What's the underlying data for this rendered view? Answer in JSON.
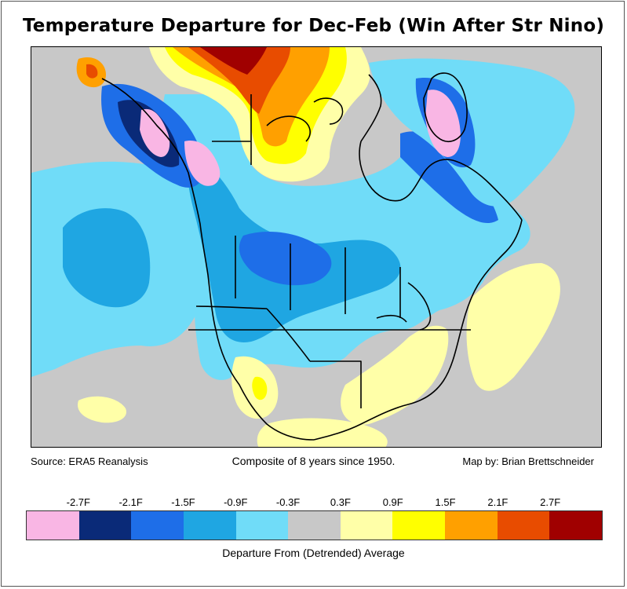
{
  "title": "Temperature Departure for Dec-Feb (Win After Str Nino)",
  "captions": {
    "source": "Source: ERA5 Reanalysis",
    "composite": "Composite of 8 years since 1950.",
    "credit": "Map by: Brian Brettschneider"
  },
  "colorbar": {
    "title": "Departure From (Detrended) Average",
    "tick_labels": [
      "-2.7F",
      "-2.1F",
      "-1.5F",
      "-0.9F",
      "-0.3F",
      "0.3F",
      "0.9F",
      "1.5F",
      "2.1F",
      "2.7F"
    ],
    "colors": [
      "#f9b6e4",
      "#0a2a78",
      "#1e6ee8",
      "#1fa6e2",
      "#70dcf8",
      "#c8c8c8",
      "#ffffa8",
      "#ffff00",
      "#ffa000",
      "#e84c00",
      "#a00000"
    ]
  },
  "map_colors": {
    "pink": "#f9b6e4",
    "navy": "#0a2a78",
    "blue": "#1e6ee8",
    "mid_blue": "#1fa6e2",
    "light_blue": "#70dcf8",
    "gray": "#c8c8c8",
    "light_yellow": "#ffffa8",
    "yellow": "#ffff00",
    "orange": "#ffa000",
    "red_orange": "#e84c00",
    "dark_red": "#a00000"
  }
}
